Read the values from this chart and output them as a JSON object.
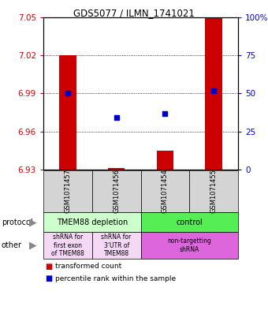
{
  "title": "GDS5077 / ILMN_1741021",
  "samples": [
    "GSM1071457",
    "GSM1071456",
    "GSM1071454",
    "GSM1071455"
  ],
  "bar_values": [
    7.02,
    6.931,
    6.945,
    7.05
  ],
  "bar_base": 6.93,
  "dot_values": [
    6.99,
    6.971,
    6.974,
    6.992
  ],
  "ylim_min": 6.93,
  "ylim_max": 7.05,
  "yticks_left": [
    7.05,
    7.02,
    6.99,
    6.96,
    6.93
  ],
  "yticks_right_pct": [
    100,
    75,
    50,
    25,
    0
  ],
  "bar_color": "#cc0000",
  "dot_color": "#0000cc",
  "protocol_labels": [
    "TMEM88 depletion",
    "control"
  ],
  "protocol_colors": [
    "#ccffcc",
    "#55ee55"
  ],
  "other_labels": [
    "shRNA for\nfirst exon\nof TMEM88",
    "shRNA for\n3'UTR of\nTMEM88",
    "non-targetting\nshRNA"
  ],
  "other_colors_light": "#f5d8f5",
  "other_color_bright": "#dd66dd",
  "legend_red": "transformed count",
  "legend_blue": "percentile rank within the sample",
  "protocol_text": "protocol",
  "other_text": "other",
  "sample_bg": "#d4d4d4"
}
